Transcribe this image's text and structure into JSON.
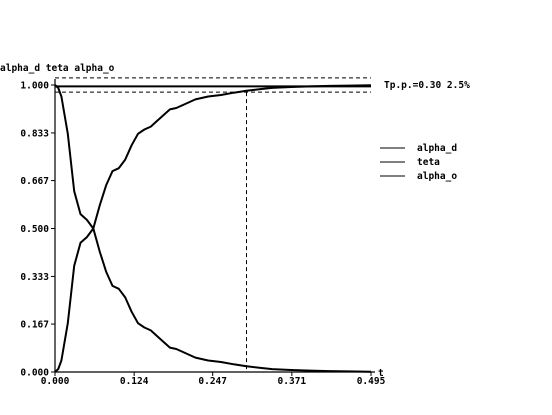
{
  "chart_data": {
    "type": "line",
    "title": "alpha_d teta alpha_o",
    "xlabel": "t",
    "ylabel": "",
    "xlim": [
      0,
      0.495
    ],
    "ylim": [
      0,
      1.0
    ],
    "xticks": [
      "0.000",
      "0.124",
      "0.247",
      "0.371",
      "0.495"
    ],
    "yticks": [
      "0.000",
      "0.167",
      "0.333",
      "0.500",
      "0.667",
      "0.833",
      "1.000"
    ],
    "annotation": "Tp.p.=0.30 2.5%",
    "band": {
      "upper": 1.025,
      "lower": 0.975
    },
    "marker_x": 0.3,
    "legend_position": "right",
    "grid": false,
    "series": [
      {
        "name": "alpha_d",
        "x": [
          0,
          0.005,
          0.01,
          0.02,
          0.03,
          0.04,
          0.05,
          0.06,
          0.07,
          0.08,
          0.09,
          0.1,
          0.11,
          0.12,
          0.13,
          0.14,
          0.15,
          0.16,
          0.17,
          0.18,
          0.19,
          0.2,
          0.22,
          0.24,
          0.26,
          0.28,
          0.3,
          0.32,
          0.34,
          0.37,
          0.4,
          0.43,
          0.46,
          0.495
        ],
        "values": [
          1.0,
          0.99,
          0.96,
          0.83,
          0.63,
          0.55,
          0.53,
          0.5,
          0.42,
          0.35,
          0.3,
          0.29,
          0.26,
          0.21,
          0.17,
          0.155,
          0.145,
          0.125,
          0.105,
          0.085,
          0.08,
          0.07,
          0.05,
          0.04,
          0.035,
          0.027,
          0.02,
          0.015,
          0.01,
          0.007,
          0.005,
          0.003,
          0.002,
          0.001
        ]
      },
      {
        "name": "teta",
        "x": [
          0,
          0.005,
          0.01,
          0.02,
          0.03,
          0.04,
          0.05,
          0.06,
          0.07,
          0.08,
          0.09,
          0.1,
          0.11,
          0.12,
          0.13,
          0.14,
          0.15,
          0.16,
          0.17,
          0.18,
          0.19,
          0.2,
          0.22,
          0.24,
          0.26,
          0.28,
          0.3,
          0.32,
          0.34,
          0.37,
          0.4,
          0.43,
          0.46,
          0.495
        ],
        "values": [
          0.0,
          0.01,
          0.04,
          0.17,
          0.37,
          0.45,
          0.47,
          0.5,
          0.58,
          0.65,
          0.7,
          0.71,
          0.74,
          0.79,
          0.83,
          0.845,
          0.855,
          0.875,
          0.895,
          0.915,
          0.92,
          0.93,
          0.95,
          0.96,
          0.965,
          0.973,
          0.98,
          0.985,
          0.99,
          0.993,
          0.995,
          0.997,
          0.998,
          0.999
        ]
      },
      {
        "name": "alpha_o",
        "x": [
          0,
          0.495
        ],
        "values": [
          0.995,
          0.995
        ]
      }
    ]
  }
}
